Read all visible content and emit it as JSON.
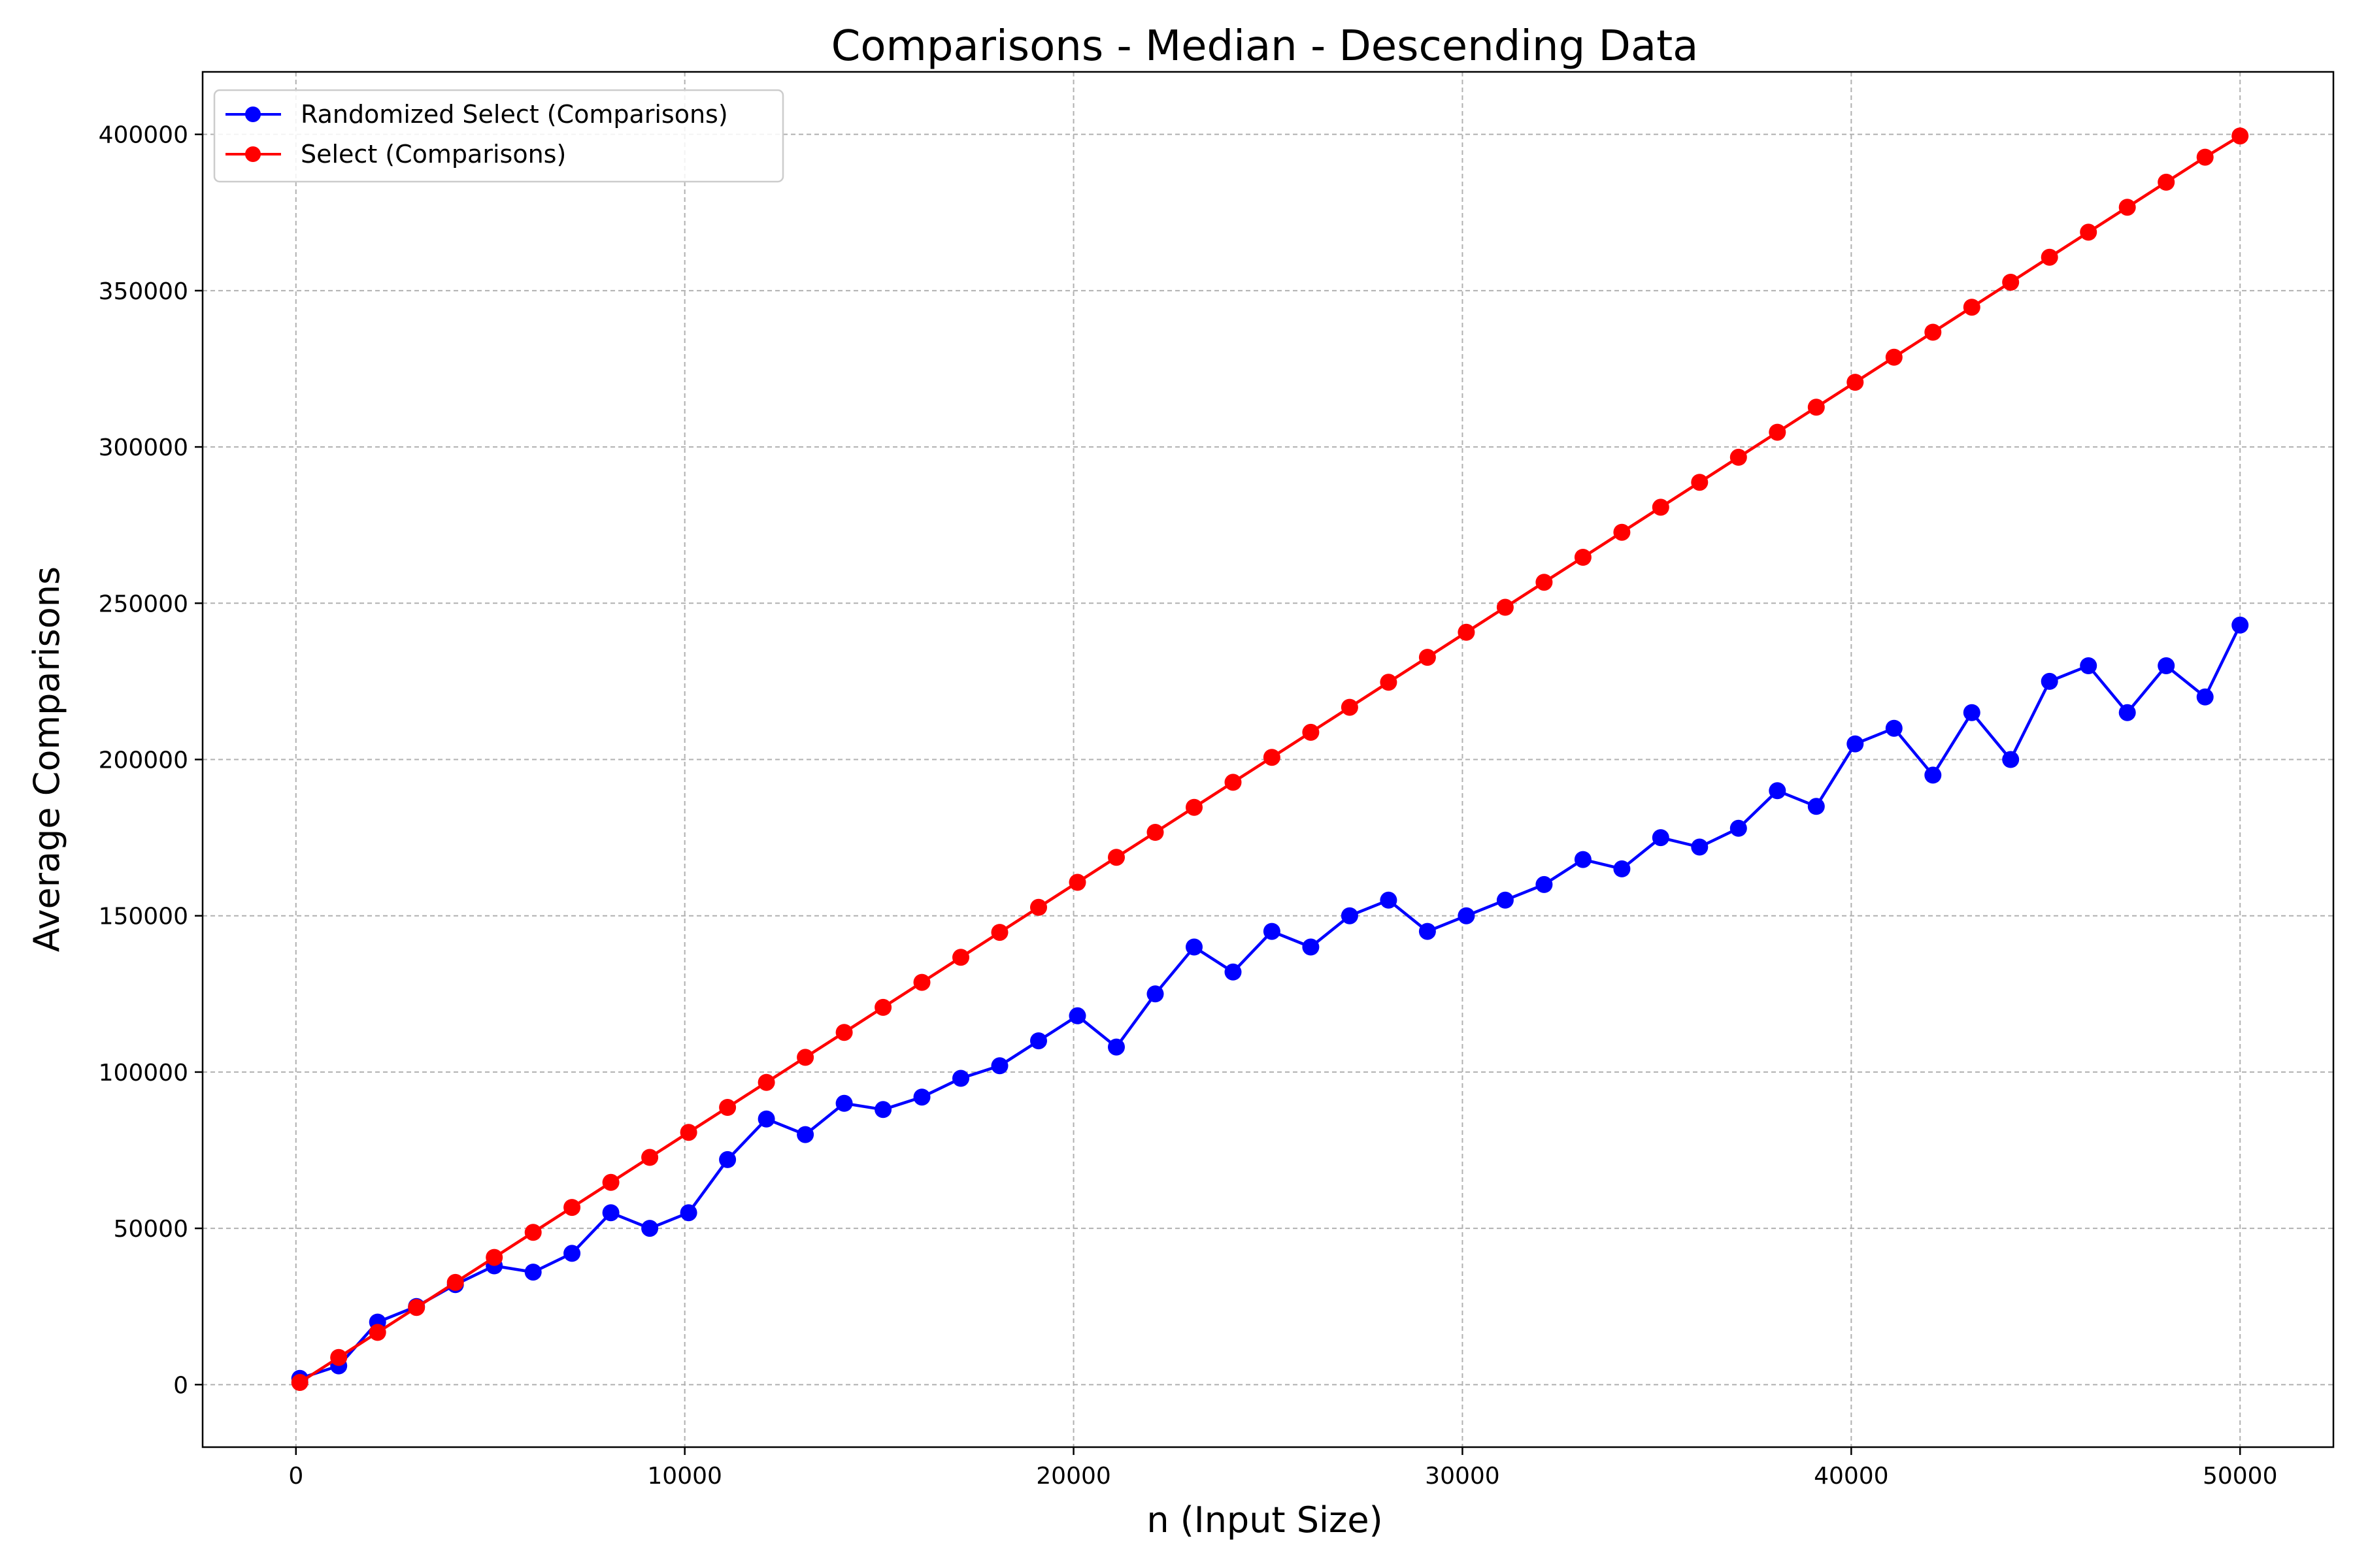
{
  "chart_data": {
    "type": "line",
    "title": "Comparisons - Median - Descending Data",
    "xlabel": "n (Input Size)",
    "ylabel": "Average Comparisons",
    "xlim": [
      -2400,
      52400
    ],
    "ylim": [
      -20000,
      420000
    ],
    "x_ticks": [
      0,
      10000,
      20000,
      30000,
      40000,
      50000
    ],
    "y_ticks": [
      0,
      50000,
      100000,
      150000,
      200000,
      250000,
      300000,
      350000,
      400000
    ],
    "grid": true,
    "legend_position": "top-left",
    "x": [
      100,
      1100,
      2100,
      3100,
      4100,
      5100,
      6100,
      7100,
      8100,
      9100,
      10100,
      11100,
      12100,
      13100,
      14100,
      15100,
      16100,
      17100,
      18100,
      19100,
      20100,
      21100,
      22100,
      23100,
      24100,
      25100,
      26100,
      27100,
      28100,
      29100,
      30100,
      31100,
      32100,
      33100,
      34100,
      35100,
      36100,
      37100,
      38100,
      39100,
      40100,
      41100,
      42100,
      43100,
      44100,
      45100,
      46100,
      47100,
      48100,
      49100,
      50000
    ],
    "series": [
      {
        "name": "Randomized Select (Comparisons)",
        "color": "#0000ff",
        "values": [
          2000,
          6000,
          20000,
          25000,
          32000,
          38000,
          36000,
          42000,
          55000,
          50000,
          55000,
          72000,
          85000,
          80000,
          90000,
          88000,
          92000,
          98000,
          102000,
          110000,
          118000,
          108000,
          125000,
          140000,
          132000,
          145000,
          140000,
          150000,
          155000,
          145000,
          150000,
          155000,
          160000,
          168000,
          165000,
          175000,
          172000,
          178000,
          190000,
          185000,
          205000,
          210000,
          195000,
          215000,
          200000,
          225000,
          230000,
          215000,
          230000,
          220000,
          243000
        ]
      },
      {
        "name": "Select (Comparisons)",
        "color": "#ff0000",
        "values": [
          700,
          8700,
          16700,
          24700,
          32700,
          40700,
          48700,
          56700,
          64700,
          72700,
          80700,
          88700,
          96700,
          104700,
          112700,
          120700,
          128700,
          136700,
          144700,
          152700,
          160700,
          168700,
          176700,
          184700,
          192700,
          200700,
          208700,
          216700,
          224700,
          232700,
          240700,
          248700,
          256700,
          264700,
          272700,
          280700,
          288700,
          296700,
          304700,
          312700,
          320700,
          328700,
          336700,
          344700,
          352700,
          360700,
          368700,
          376700,
          384700,
          392700,
          399500
        ]
      }
    ]
  }
}
